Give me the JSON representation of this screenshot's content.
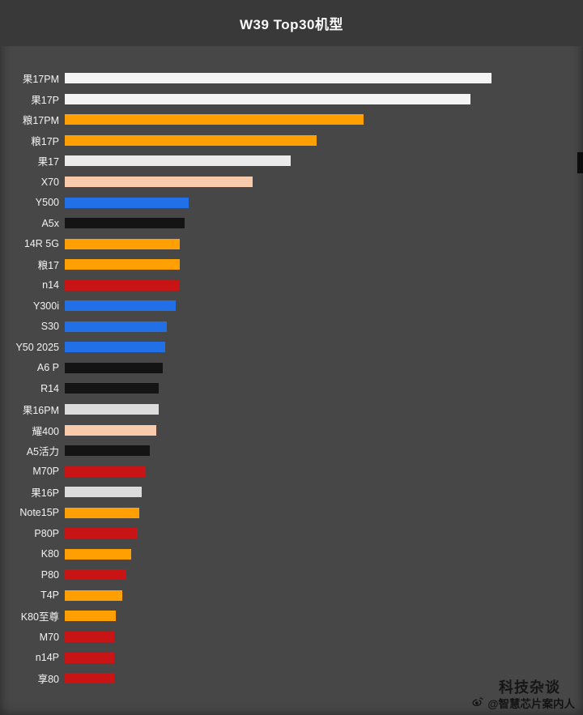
{
  "chart_data": {
    "type": "bar",
    "orientation": "horizontal",
    "title": "W39 Top30机型",
    "xlabel": "",
    "ylabel": "",
    "xlim": [
      0,
      100
    ],
    "grid": false,
    "legend": false,
    "categories": [
      "果17PM",
      "果17P",
      "粮17PM",
      "粮17P",
      "果17",
      "X70",
      "Y500",
      "A5x",
      "14R 5G",
      "粮17",
      "n14",
      "Y300i",
      "S30",
      "Y50 2025",
      "A6 P",
      "R14",
      "果16PM",
      "耀400",
      "A5活力",
      "M70P",
      "果16P",
      "Note15P",
      "P80P",
      "K80",
      "P80",
      "T4P",
      "K80至尊",
      "M70",
      "n14P",
      "享80"
    ],
    "values": [
      100,
      95,
      70,
      59,
      53,
      44,
      29,
      28,
      27,
      27,
      27,
      26,
      24,
      23.5,
      23,
      22,
      22,
      21.5,
      20,
      19,
      18,
      17.5,
      17,
      15.5,
      14.5,
      13.5,
      12,
      11.5,
      11.5,
      11.5
    ],
    "colors": [
      "#f4f4f4",
      "#f4f4f4",
      "#ffa000",
      "#ffa000",
      "#ebebeb",
      "#f8cbad",
      "#2270e8",
      "#141414",
      "#ffa000",
      "#ffa000",
      "#c81414",
      "#2270e8",
      "#2270e8",
      "#2270e8",
      "#141414",
      "#141414",
      "#dcdcdc",
      "#f8cbad",
      "#141414",
      "#c81414",
      "#dcdcdc",
      "#ffa000",
      "#c81414",
      "#ffa000",
      "#c81414",
      "#ffa000",
      "#ffa000",
      "#c81414",
      "#c81414",
      "#c81414"
    ]
  },
  "watermark": {
    "brand": "科技杂谈",
    "handle": "@智慧芯片案内人"
  },
  "colors": {
    "background": "#474747",
    "header_band": "#393939",
    "label_text": "#f2f2f2",
    "watermark_text": "#161616"
  }
}
